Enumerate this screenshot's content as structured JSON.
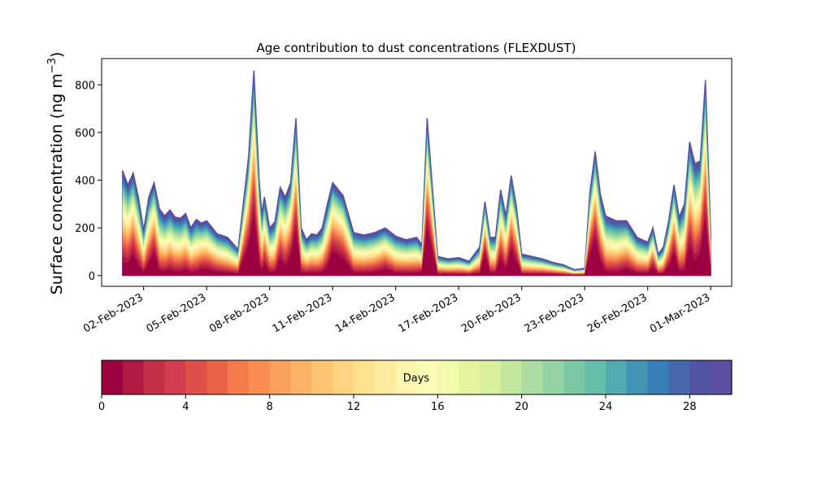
{
  "chart_data": {
    "type": "area",
    "title": "Age contribution to dust concentrations (FLEXDUST)",
    "ylabel_main": "Surface concentration (ng m",
    "ylabel_sup": "−3",
    "ylabel_close": ")",
    "xlabel": "",
    "ylim": [
      -45,
      910
    ],
    "xlim": [
      "2023-01-31",
      "2023-03-02"
    ],
    "y_ticks": [
      0,
      200,
      400,
      600,
      800
    ],
    "x_ticks": [
      {
        "date": "2023-02-02",
        "label": "02-Feb-2023"
      },
      {
        "date": "2023-02-05",
        "label": "05-Feb-2023"
      },
      {
        "date": "2023-02-08",
        "label": "08-Feb-2023"
      },
      {
        "date": "2023-02-11",
        "label": "11-Feb-2023"
      },
      {
        "date": "2023-02-14",
        "label": "14-Feb-2023"
      },
      {
        "date": "2023-02-17",
        "label": "17-Feb-2023"
      },
      {
        "date": "2023-02-20",
        "label": "20-Feb-2023"
      },
      {
        "date": "2023-02-23",
        "label": "23-Feb-2023"
      },
      {
        "date": "2023-02-26",
        "label": "26-Feb-2023"
      },
      {
        "date": "2023-03-01",
        "label": "01-Mar-2023"
      }
    ],
    "series_count": 30,
    "total": {
      "x": [
        "2023-02-01T00:00",
        "2023-02-01T06:00",
        "2023-02-01T12:00",
        "2023-02-01T18:00",
        "2023-02-02T00:00",
        "2023-02-02T06:00",
        "2023-02-02T12:00",
        "2023-02-02T18:00",
        "2023-02-03T00:00",
        "2023-02-03T06:00",
        "2023-02-03T12:00",
        "2023-02-03T18:00",
        "2023-02-04T00:00",
        "2023-02-04T06:00",
        "2023-02-04T12:00",
        "2023-02-04T18:00",
        "2023-02-05T00:00",
        "2023-02-05T12:00",
        "2023-02-06T00:00",
        "2023-02-06T12:00",
        "2023-02-07T00:00",
        "2023-02-07T06:00",
        "2023-02-07T12:00",
        "2023-02-07T15:00",
        "2023-02-07T18:00",
        "2023-02-08T00:00",
        "2023-02-08T06:00",
        "2023-02-08T12:00",
        "2023-02-08T18:00",
        "2023-02-09T00:00",
        "2023-02-09T06:00",
        "2023-02-09T12:00",
        "2023-02-09T18:00",
        "2023-02-10T00:00",
        "2023-02-10T06:00",
        "2023-02-10T12:00",
        "2023-02-10T18:00",
        "2023-02-11T00:00",
        "2023-02-11T12:00",
        "2023-02-12T00:00",
        "2023-02-12T12:00",
        "2023-02-13T00:00",
        "2023-02-13T12:00",
        "2023-02-14T00:00",
        "2023-02-14T12:00",
        "2023-02-15T00:00",
        "2023-02-15T06:00",
        "2023-02-15T12:00",
        "2023-02-16T00:00",
        "2023-02-16T12:00",
        "2023-02-17T00:00",
        "2023-02-17T12:00",
        "2023-02-18T00:00",
        "2023-02-18T06:00",
        "2023-02-18T12:00",
        "2023-02-18T18:00",
        "2023-02-19T00:00",
        "2023-02-19T06:00",
        "2023-02-19T12:00",
        "2023-02-19T18:00",
        "2023-02-20T00:00",
        "2023-02-20T12:00",
        "2023-02-21T00:00",
        "2023-02-21T12:00",
        "2023-02-22T00:00",
        "2023-02-22T12:00",
        "2023-02-23T00:00",
        "2023-02-23T06:00",
        "2023-02-23T12:00",
        "2023-02-23T18:00",
        "2023-02-24T00:00",
        "2023-02-24T12:00",
        "2023-02-25T00:00",
        "2023-02-25T12:00",
        "2023-02-26T00:00",
        "2023-02-26T06:00",
        "2023-02-26T12:00",
        "2023-02-26T18:00",
        "2023-02-27T00:00",
        "2023-02-27T06:00",
        "2023-02-27T12:00",
        "2023-02-27T18:00",
        "2023-02-28T00:00",
        "2023-02-28T06:00",
        "2023-02-28T12:00",
        "2023-02-28T18:00",
        "2023-03-01T00:00"
      ],
      "y": [
        440,
        380,
        430,
        330,
        190,
        330,
        390,
        280,
        250,
        275,
        245,
        240,
        260,
        200,
        235,
        220,
        230,
        175,
        160,
        110,
        500,
        860,
        400,
        260,
        330,
        200,
        225,
        370,
        330,
        390,
        660,
        200,
        150,
        175,
        170,
        200,
        300,
        390,
        335,
        180,
        170,
        180,
        200,
        165,
        150,
        160,
        130,
        660,
        80,
        70,
        75,
        60,
        120,
        310,
        160,
        160,
        360,
        250,
        420,
        290,
        90,
        80,
        70,
        55,
        45,
        25,
        30,
        350,
        520,
        340,
        250,
        230,
        230,
        160,
        140,
        200,
        90,
        120,
        230,
        380,
        245,
        300,
        560,
        470,
        480,
        820,
        170
      ]
    },
    "colorbar": {
      "label": "Days",
      "ticks": [
        0,
        4,
        8,
        12,
        16,
        20,
        24,
        28
      ],
      "range": [
        0,
        30
      ],
      "colors": [
        "#9e0142",
        "#b11844",
        "#c42e47",
        "#d43d4f",
        "#e04f4a",
        "#e96346",
        "#f47a4a",
        "#f88e54",
        "#fba05c",
        "#fdb366",
        "#fec574",
        "#fed383",
        "#fee18f",
        "#feeb9f",
        "#fff4ae",
        "#fbfbb6",
        "#f3faae",
        "#e6f59d",
        "#d9ef9b",
        "#c4e79e",
        "#aedda2",
        "#94d3a4",
        "#7ac8a5",
        "#64bda8",
        "#51aaad",
        "#4295b3",
        "#3a7eb8",
        "#4668ae",
        "#5254a3",
        "#5e4fa2"
      ]
    }
  }
}
